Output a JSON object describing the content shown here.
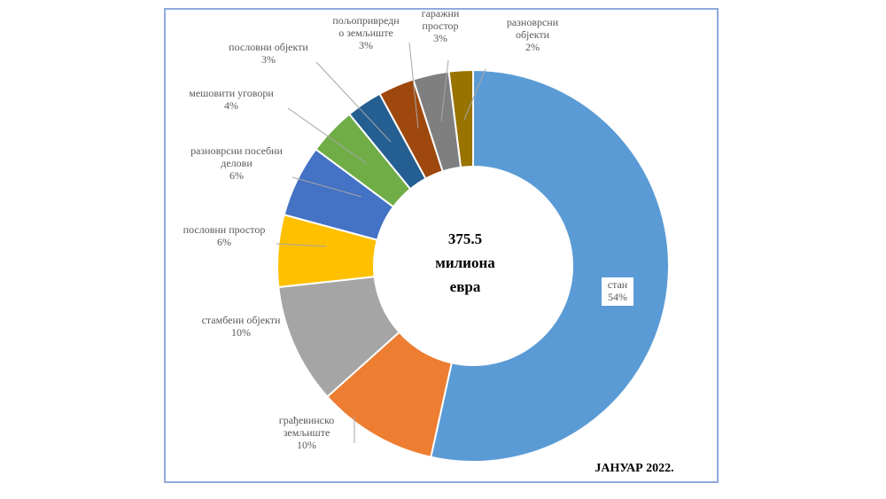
{
  "chart_data": {
    "type": "pie",
    "variant": "donut",
    "center_label": [
      "375.5",
      "милиона",
      "евра"
    ],
    "period_label": "ЈАНУАР 2022.",
    "slices": [
      {
        "name": [
          "стан"
        ],
        "value_label": "54%",
        "value": 54,
        "color": "#5b9bd5"
      },
      {
        "name": [
          "грађевинско",
          "земљиште"
        ],
        "value_label": "10%",
        "value": 10,
        "color": "#ed7d31"
      },
      {
        "name": [
          "стамбени објекти"
        ],
        "value_label": "10%",
        "value": 10,
        "color": "#a5a5a5"
      },
      {
        "name": [
          "пословни простор"
        ],
        "value_label": "6%",
        "value": 6,
        "color": "#ffc000"
      },
      {
        "name": [
          "разноврсни посебни",
          "делови"
        ],
        "value_label": "6%",
        "value": 6,
        "color": "#4472c4"
      },
      {
        "name": [
          "мешовити уговори"
        ],
        "value_label": "4%",
        "value": 4,
        "color": "#70ad47"
      },
      {
        "name": [
          "пословни објекти"
        ],
        "value_label": "3%",
        "value": 3,
        "color": "#255e91"
      },
      {
        "name": [
          "пољопривредн",
          "о земљиште"
        ],
        "value_label": "3%",
        "value": 3,
        "color": "#9e480e"
      },
      {
        "name": [
          "гаражни",
          "простор"
        ],
        "value_label": "3%",
        "value": 3,
        "color": "#7f7f7f"
      },
      {
        "name": [
          "разноврсни",
          "објекти"
        ],
        "value_label": "2%",
        "value": 2,
        "color": "#997300"
      }
    ]
  }
}
